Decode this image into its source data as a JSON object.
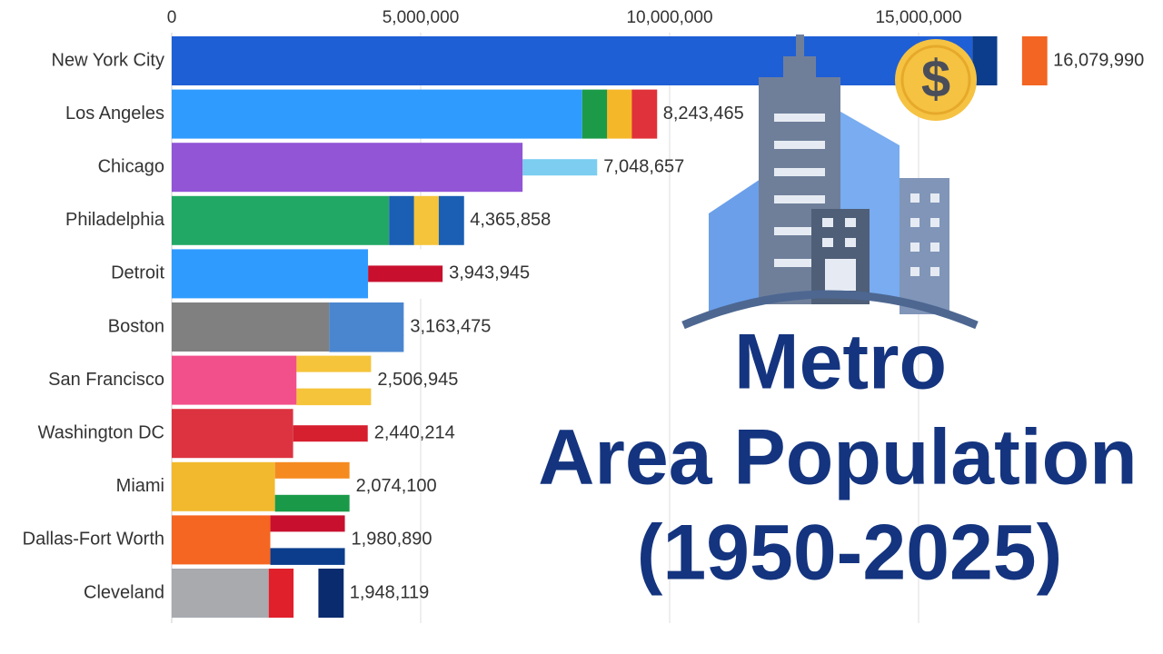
{
  "chart_data": {
    "type": "bar",
    "orientation": "horizontal",
    "title": [
      "Metro",
      "Area Population",
      "(1950-2025)"
    ],
    "annotations": [
      "$"
    ],
    "categories": [
      "New York City",
      "Los Angeles",
      "Chicago",
      "Philadelphia",
      "Detroit",
      "Boston",
      "San Francisco",
      "Washington DC",
      "Miami",
      "Dallas-Fort Worth",
      "Cleveland"
    ],
    "values": [
      16079990,
      8243465,
      7048657,
      4365858,
      3943945,
      3163475,
      2506945,
      2440214,
      2074100,
      1980890,
      1948119
    ],
    "value_labels": [
      "16,079,990",
      "8,243,465",
      "7,048,657",
      "4,365,858",
      "3,943,945",
      "3,163,475",
      "2,506,945",
      "2,440,214",
      "2,074,100",
      "1,980,890",
      "1,948,119"
    ],
    "colors": [
      "#1f5fd6",
      "#2f9bff",
      "#9155d6",
      "#22a865",
      "#2f9bff",
      "#808080",
      "#f2508a",
      "#dd3340",
      "#f2b92e",
      "#f56622",
      "#a8aaae"
    ],
    "xlim": [
      0,
      15000000
    ],
    "xticks": [
      0,
      {
        "value": 5000000,
        "label": "5,000,000"
      },
      {
        "value": 10000000,
        "label": "10,000,000"
      },
      {
        "value": 15000000,
        "label": "15,000,000"
      }
    ],
    "grid": true,
    "title_color": "#14347f"
  }
}
